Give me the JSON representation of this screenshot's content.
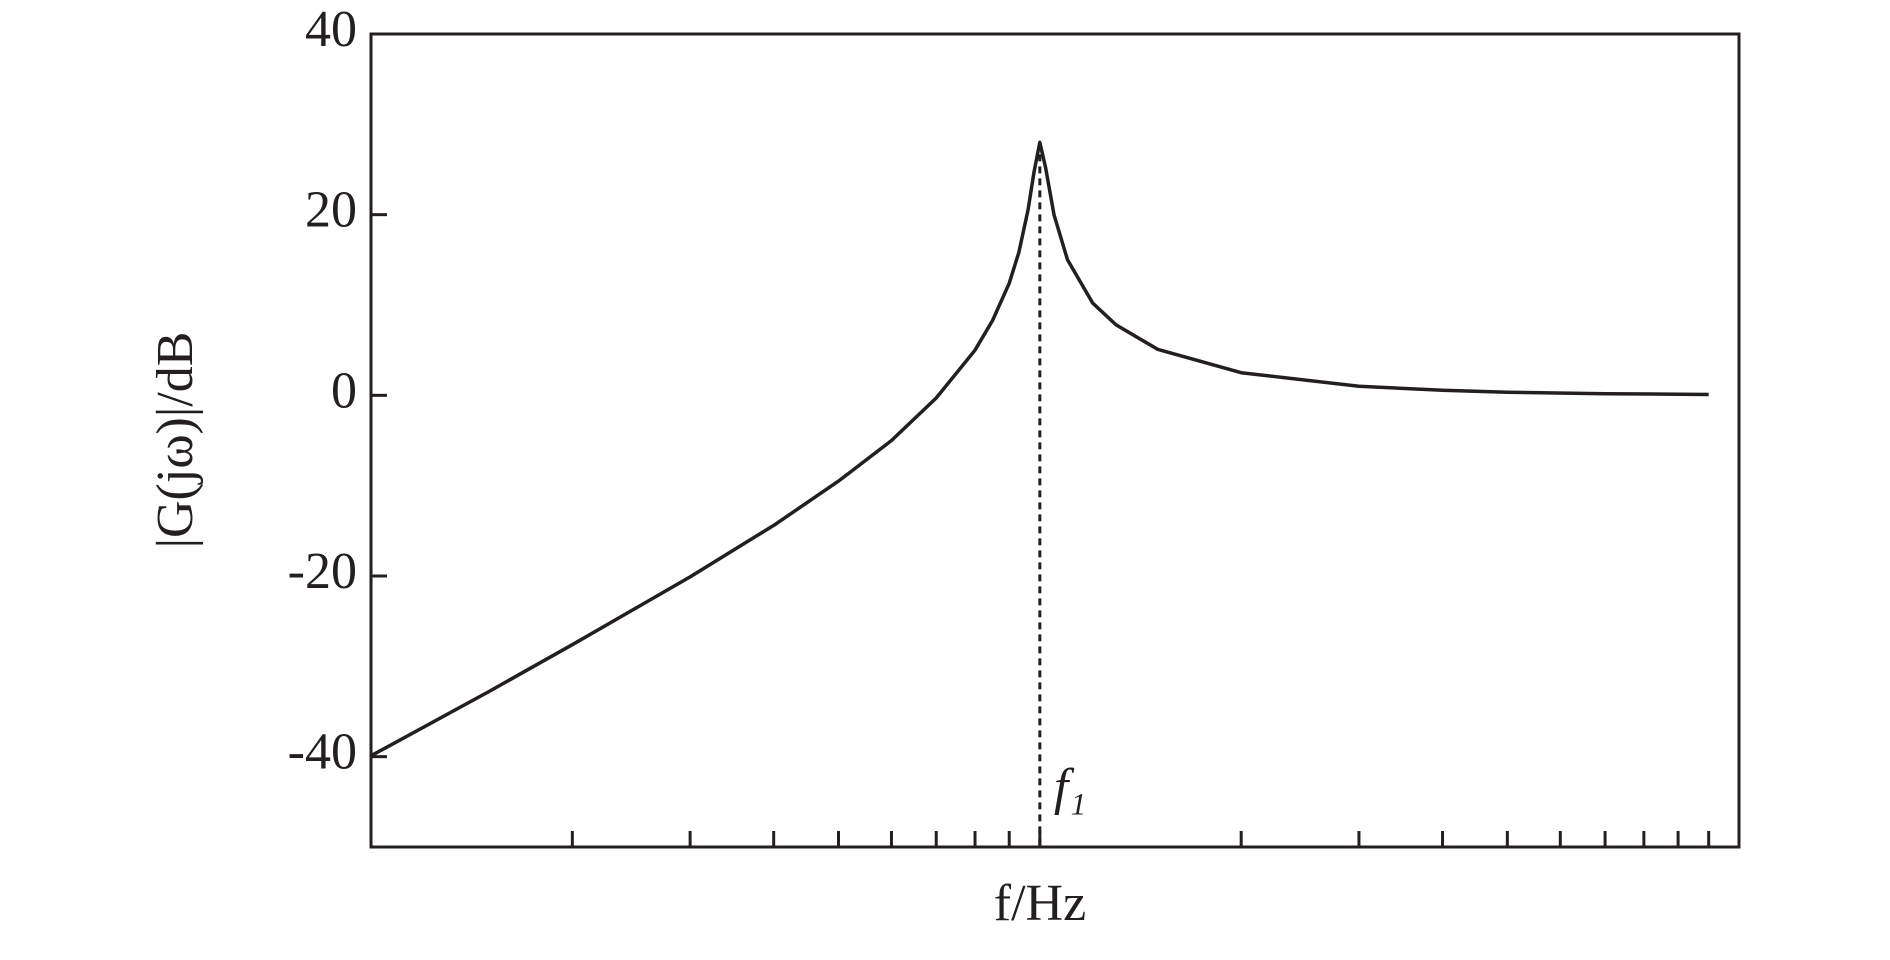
{
  "chart_data": {
    "type": "line",
    "xlabel": "f/Hz",
    "ylabel": "|G(jω)|/dB",
    "x": [
      1,
      1.5,
      2,
      3,
      4,
      5,
      6,
      7,
      8,
      8.5,
      9,
      9.3,
      9.6,
      9.8,
      10,
      10.2,
      10.5,
      11,
      12,
      13,
      15,
      20,
      30,
      40,
      50,
      70,
      100
    ],
    "series": [
      {
        "color": "#231f20",
        "values": [
          -39.9,
          -32.8,
          -27.6,
          -20.1,
          -14.4,
          -9.5,
          -5.0,
          -0.3,
          5.0,
          8.3,
          12.4,
          15.8,
          20.5,
          24.7,
          28.0,
          25.2,
          20.0,
          15.0,
          10.2,
          7.8,
          5.1,
          2.5,
          1.0,
          0.56,
          0.35,
          0.18,
          0.09
        ]
      }
    ],
    "xscale": "log",
    "xlim": [
      1,
      111
    ],
    "xticks": [
      1,
      2,
      3,
      4,
      5,
      6,
      7,
      8,
      9,
      10,
      20,
      30,
      40,
      50,
      60,
      70,
      80,
      90,
      100
    ],
    "ylim": [
      -50,
      40
    ],
    "yticks": [
      -40,
      -20,
      0,
      20,
      40
    ],
    "marker": {
      "x": 10,
      "label": "f₁"
    }
  }
}
